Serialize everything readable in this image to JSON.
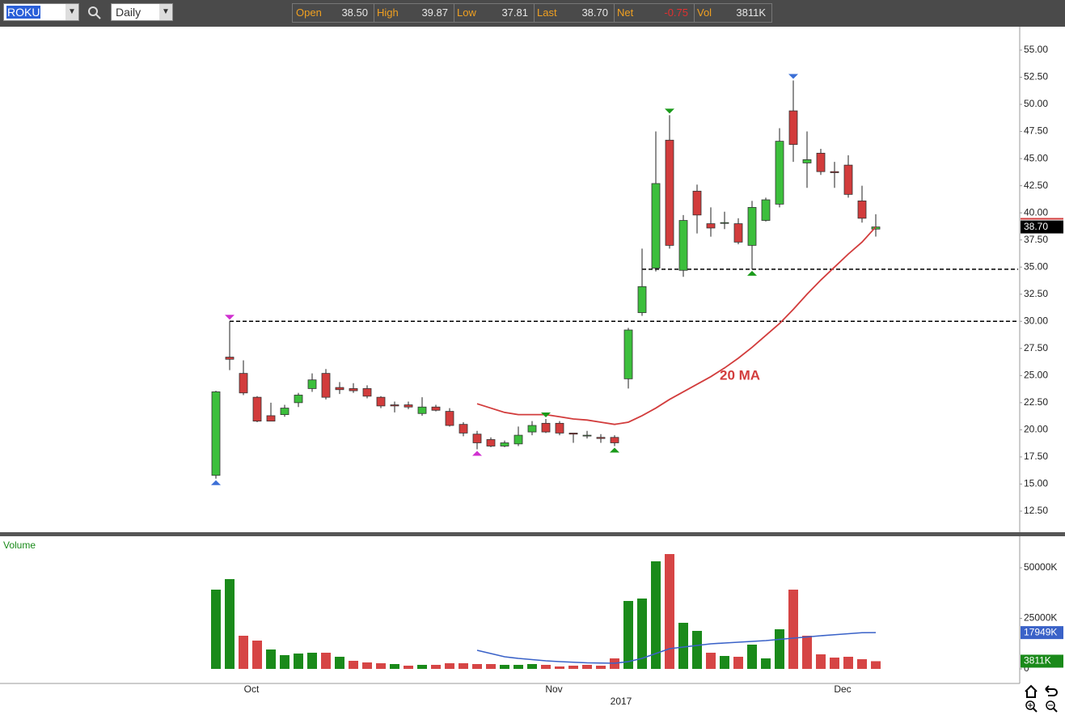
{
  "toolbar": {
    "symbol": "ROKU",
    "interval": "Daily",
    "stats": [
      {
        "label": "Open",
        "value": "38.50"
      },
      {
        "label": "High",
        "value": "39.87"
      },
      {
        "label": "Low",
        "value": "37.81"
      },
      {
        "label": "Last",
        "value": "38.70"
      },
      {
        "label": "Net",
        "value": "-0.75"
      },
      {
        "label": "Vol",
        "value": "3811K"
      }
    ]
  },
  "chart_data": [
    {
      "type": "candlestick",
      "open": [
        15.8,
        26.7,
        25.2,
        23.0,
        21.3,
        21.4,
        22.5,
        23.8,
        25.2,
        23.9,
        23.8,
        23.8,
        23.0,
        22.3,
        22.3,
        21.5,
        22.1,
        21.7,
        20.5,
        19.6,
        19.1,
        18.5,
        18.7,
        19.8,
        20.6,
        20.6,
        19.7,
        19.5,
        19.3,
        19.3,
        24.7,
        30.8,
        34.9,
        46.7,
        34.7,
        42.0,
        39.0,
        39.1,
        39.0,
        37.0,
        39.3,
        40.8,
        49.4,
        44.6,
        45.5,
        43.8,
        44.4,
        41.1,
        38.5
      ],
      "high": [
        23.6,
        30.0,
        26.4,
        23.1,
        22.5,
        22.3,
        23.4,
        25.2,
        25.6,
        24.4,
        24.3,
        24.1,
        23.1,
        22.6,
        22.6,
        23.0,
        22.3,
        22.0,
        20.7,
        19.9,
        19.3,
        19.0,
        20.3,
        20.8,
        21.0,
        20.8,
        19.7,
        19.9,
        19.6,
        19.5,
        29.4,
        36.7,
        47.5,
        49.0,
        39.8,
        42.6,
        40.5,
        40.1,
        39.5,
        41.1,
        41.4,
        47.8,
        52.2,
        47.5,
        45.9,
        44.7,
        45.3,
        42.5,
        39.87
      ],
      "low": [
        15.5,
        25.5,
        23.2,
        20.7,
        20.8,
        21.2,
        22.1,
        23.5,
        22.8,
        23.3,
        23.4,
        22.9,
        22.0,
        21.6,
        21.9,
        21.3,
        21.7,
        20.3,
        19.4,
        18.2,
        18.4,
        18.4,
        18.5,
        19.5,
        19.7,
        19.5,
        18.8,
        19.2,
        18.8,
        18.5,
        23.8,
        30.5,
        34.6,
        36.7,
        34.1,
        38.1,
        37.8,
        38.5,
        37.1,
        34.8,
        39.2,
        40.5,
        44.7,
        42.3,
        43.5,
        42.3,
        41.4,
        39.1,
        37.81
      ],
      "close": [
        23.5,
        26.5,
        23.4,
        20.8,
        20.8,
        22.0,
        23.2,
        24.6,
        23.0,
        23.7,
        23.6,
        23.1,
        22.2,
        22.2,
        22.1,
        22.1,
        21.8,
        20.4,
        19.7,
        18.8,
        18.5,
        18.8,
        19.5,
        20.4,
        19.8,
        19.7,
        19.6,
        19.5,
        19.2,
        18.8,
        29.2,
        33.2,
        42.7,
        37.0,
        39.3,
        39.8,
        38.6,
        39.1,
        37.3,
        40.5,
        41.2,
        46.6,
        46.3,
        44.9,
        43.8,
        43.7,
        41.7,
        39.5,
        38.7
      ],
      "up_color": "#3cbf3c",
      "down_color": "#d23c3c",
      "ma": {
        "label": "20 MA",
        "color": "#d23c3c",
        "values": [
          null,
          null,
          null,
          null,
          null,
          null,
          null,
          null,
          null,
          null,
          null,
          null,
          null,
          null,
          null,
          null,
          null,
          null,
          null,
          22.4,
          22.0,
          21.6,
          21.4,
          21.4,
          21.4,
          21.2,
          21.0,
          20.9,
          20.7,
          20.5,
          20.7,
          21.3,
          22.0,
          22.8,
          23.5,
          24.2,
          24.9,
          25.7,
          26.6,
          27.6,
          28.7,
          29.8,
          31.1,
          32.5,
          33.8,
          35.0,
          36.2,
          37.3,
          38.7
        ]
      },
      "levels": [
        {
          "value": 30.0,
          "from": 1
        },
        {
          "value": 34.8,
          "from": 31
        }
      ],
      "markers": [
        {
          "candle": 0,
          "side": "low",
          "color": "#3b6fd6"
        },
        {
          "candle": 1,
          "side": "high",
          "color": "#d030d0"
        },
        {
          "candle": 19,
          "side": "low",
          "color": "#d030d0"
        },
        {
          "candle": 24,
          "side": "high",
          "color": "#1a9a1a"
        },
        {
          "candle": 29,
          "side": "low",
          "color": "#1a9a1a"
        },
        {
          "candle": 33,
          "side": "high",
          "color": "#1a9a1a"
        },
        {
          "candle": 39,
          "side": "low",
          "color": "#1a9a1a"
        },
        {
          "candle": 42,
          "side": "high",
          "color": "#3b6fd6"
        }
      ],
      "prev_close": 39.45,
      "last_tag": {
        "value": 38.7,
        "label": "38.70"
      },
      "ylim": [
        10.56,
        57.01
      ],
      "yticks": [
        {
          "value": 12.5,
          "label": "12.50"
        },
        {
          "value": 15,
          "label": "15.00"
        },
        {
          "value": 17.5,
          "label": "17.50"
        },
        {
          "value": 20,
          "label": "20.00"
        },
        {
          "value": 22.5,
          "label": "22.50"
        },
        {
          "value": 25,
          "label": "25.00"
        },
        {
          "value": 27.5,
          "label": "27.50"
        },
        {
          "value": 30,
          "label": "30.00"
        },
        {
          "value": 32.5,
          "label": "32.50"
        },
        {
          "value": 35,
          "label": "35.00"
        },
        {
          "value": 37.5,
          "label": "37.50"
        },
        {
          "value": 40,
          "label": "40.00"
        },
        {
          "value": 42.5,
          "label": "42.50"
        },
        {
          "value": 45,
          "label": "45.00"
        },
        {
          "value": 47.5,
          "label": "47.50"
        },
        {
          "value": 50,
          "label": "50.00"
        },
        {
          "value": 52.5,
          "label": "52.50"
        },
        {
          "value": 55,
          "label": "55.00"
        }
      ]
    },
    {
      "type": "bar",
      "title": "Volume",
      "categories": [
        null,
        null,
        "Oct",
        null,
        null,
        null,
        null,
        null,
        null,
        null,
        null,
        null,
        null,
        null,
        null,
        null,
        null,
        null,
        null,
        null,
        null,
        null,
        null,
        null,
        "Nov",
        null,
        null,
        null,
        null,
        null,
        null,
        null,
        null,
        null,
        null,
        null,
        null,
        null,
        null,
        null,
        null,
        null,
        null,
        null,
        null,
        "Dec",
        null,
        null,
        null
      ],
      "x_year_label": "2017",
      "values": [
        39200,
        44400,
        16400,
        14000,
        9600,
        6800,
        7600,
        8000,
        8000,
        6000,
        4000,
        3200,
        2800,
        2400,
        1600,
        2000,
        2000,
        2800,
        2800,
        2400,
        2400,
        2000,
        2000,
        2400,
        2000,
        1200,
        1600,
        2000,
        1600,
        5200,
        33600,
        34800,
        53200,
        56800,
        22800,
        18800,
        8000,
        6400,
        6000,
        12000,
        5200,
        19600,
        39200,
        16400,
        7200,
        5600,
        6000,
        4800,
        3811
      ],
      "last_label": "3811K",
      "up_color": "#1a8a1a",
      "down_color": "#d64545",
      "ma": {
        "color": "#3a62c8",
        "last_label": "17949K",
        "values": [
          null,
          null,
          null,
          null,
          null,
          null,
          null,
          null,
          null,
          null,
          null,
          null,
          null,
          null,
          null,
          null,
          null,
          null,
          null,
          9200,
          7600,
          6000,
          5200,
          4600,
          4000,
          3600,
          3300,
          3000,
          2900,
          2800,
          3600,
          5200,
          7600,
          10000,
          10800,
          11600,
          12400,
          12800,
          13200,
          13600,
          14000,
          14600,
          15200,
          15800,
          16400,
          16900,
          17400,
          17900,
          17949
        ]
      },
      "ylim": [
        0,
        63600
      ],
      "yticks": [
        0,
        {
          "value": 25000,
          "label": "25000K"
        },
        {
          "value": 50000,
          "label": "50000K"
        }
      ]
    }
  ]
}
